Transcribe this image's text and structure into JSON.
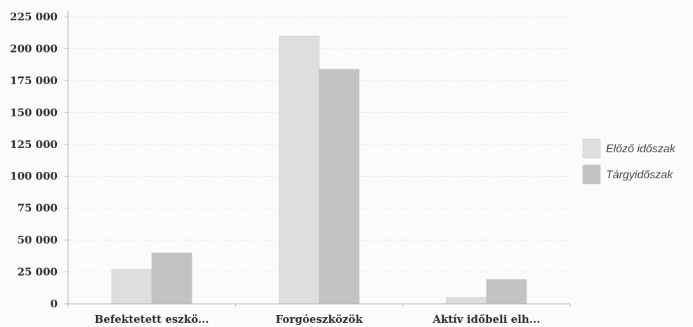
{
  "chart_data": {
    "type": "bar",
    "categories": [
      "Befektetett eszkö...",
      "Forgóeszközök",
      "Aktív időbeli elh..."
    ],
    "series": [
      {
        "name": "Előző időszak",
        "values": [
          27000,
          210000,
          5000
        ],
        "color": "#dedede"
      },
      {
        "name": "Tárgyidőszak",
        "values": [
          40000,
          184000,
          19000
        ],
        "color": "#c2c2c2"
      }
    ],
    "y_ticks": [
      "0",
      "25 000",
      "50 000",
      "75 000",
      "100 000",
      "125 000",
      "150 000",
      "175 000",
      "200 000",
      "225 000"
    ],
    "ylim": [
      0,
      225000
    ],
    "grid": true,
    "legend_position": "right"
  }
}
